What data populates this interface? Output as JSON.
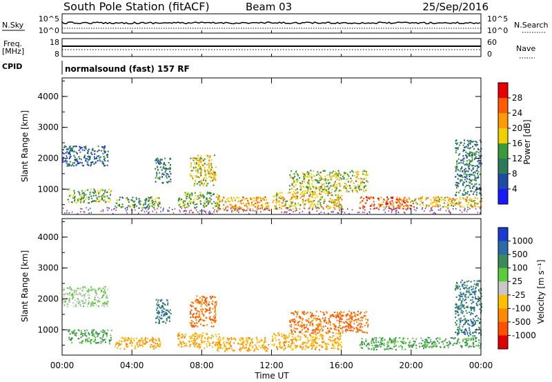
{
  "header": {
    "station": "South Pole Station (fitACF)",
    "beam": "Beam 03",
    "date": "25/Sep/2016"
  },
  "small_panels": {
    "nsky_label": "N.Sky",
    "nsky_ticks": [
      "10^5",
      "10^0"
    ],
    "nsearch_label": "N.Search",
    "nsearch_ticks": [
      "10^5",
      "10^0"
    ],
    "freq_label": "Freq.",
    "freq_unit": "[MHz]",
    "freq_ticks": [
      "18",
      "8"
    ],
    "nave_label": "Nave",
    "nave_ticks": [
      "60",
      "0"
    ],
    "cpid_label": "CPID",
    "cpid_value": "normalsound (fast) 157 RF"
  },
  "x_axis": {
    "label": "Time UT",
    "ticks": [
      "00:00",
      "04:00",
      "08:00",
      "12:00",
      "16:00",
      "20:00",
      "00:00"
    ]
  },
  "power_panel": {
    "ylabel": "Slant Range [km]",
    "yticks": [
      "1000",
      "2000",
      "3000",
      "4000"
    ],
    "colorbar_label": "Power [dB]",
    "colorbar_ticks": [
      "4",
      "8",
      "12",
      "16",
      "20",
      "24",
      "28"
    ],
    "colors": [
      "#1a1aff",
      "#1f4aa8",
      "#2d7a5a",
      "#3a9a3a",
      "#f0d000",
      "#ff9a00",
      "#ff5a00",
      "#e80000"
    ]
  },
  "velocity_panel": {
    "ylabel": "Slant Range [km]",
    "yticks": [
      "1000",
      "2000",
      "3000",
      "4000"
    ],
    "colorbar_label": "Velocity [m s⁻¹]",
    "colorbar_ticks": [
      "1000",
      "500",
      "100",
      "25",
      "-25",
      "-100",
      "-500",
      "-1000"
    ],
    "colors": [
      "#1a3ad0",
      "#2a6aa8",
      "#3a8a5a",
      "#5acc3a",
      "#c8c8c8",
      "#ffc000",
      "#ff8a00",
      "#ff5000",
      "#e00000"
    ]
  },
  "chart_data": {
    "type": "heatmap",
    "xlabel": "Time UT",
    "ylabel": "Slant Range [km]",
    "xlim": [
      0,
      24
    ],
    "ylim": [
      180,
      4600
    ],
    "scatter_regions": [
      {
        "t0": 0.0,
        "t1": 2.6,
        "r0": 1750,
        "r1": 2400,
        "power": 8,
        "vel": 25
      },
      {
        "t0": 0.3,
        "t1": 2.8,
        "r0": 550,
        "r1": 1000,
        "power": 14,
        "vel": 100
      },
      {
        "t0": 3.0,
        "t1": 5.6,
        "r0": 380,
        "r1": 750,
        "power": 12,
        "vel": -100
      },
      {
        "t0": 5.3,
        "t1": 6.2,
        "r0": 1200,
        "r1": 2000,
        "power": 10,
        "vel": 500
      },
      {
        "t0": 6.6,
        "t1": 9.0,
        "r0": 400,
        "r1": 900,
        "power": 14,
        "vel": -100
      },
      {
        "t0": 7.3,
        "t1": 8.8,
        "r0": 1100,
        "r1": 2100,
        "power": 18,
        "vel": -500
      },
      {
        "t0": 8.8,
        "t1": 11.8,
        "r0": 300,
        "r1": 750,
        "power": 22,
        "vel": -100
      },
      {
        "t0": 12.0,
        "t1": 16.0,
        "r0": 350,
        "r1": 900,
        "power": 20,
        "vel": -100
      },
      {
        "t0": 13.0,
        "t1": 17.5,
        "r0": 900,
        "r1": 1600,
        "power": 16,
        "vel": -500
      },
      {
        "t0": 17.0,
        "t1": 20.0,
        "r0": 350,
        "r1": 750,
        "power": 26,
        "vel": 100
      },
      {
        "t0": 20.0,
        "t1": 24.0,
        "r0": 400,
        "r1": 750,
        "power": 20,
        "vel": 100
      },
      {
        "t0": 22.5,
        "t1": 24.0,
        "r0": 800,
        "r1": 2600,
        "power": 10,
        "vel": 500
      }
    ]
  }
}
